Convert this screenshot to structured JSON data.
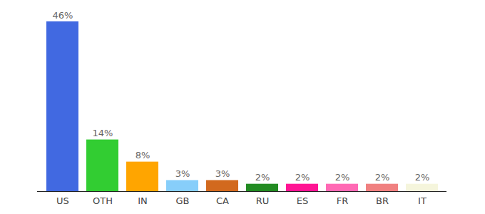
{
  "chart_data": {
    "type": "bar",
    "categories": [
      "US",
      "OTH",
      "IN",
      "GB",
      "CA",
      "RU",
      "ES",
      "FR",
      "BR",
      "IT"
    ],
    "values": [
      46,
      14,
      8,
      3,
      3,
      2,
      2,
      2,
      2,
      2
    ],
    "value_labels": [
      "46%",
      "14%",
      "8%",
      "3%",
      "3%",
      "2%",
      "2%",
      "2%",
      "2%",
      "2%"
    ],
    "colors": [
      "#4169e1",
      "#32cd32",
      "#ffa500",
      "#87cefa",
      "#d2691e",
      "#228b22",
      "#ff1493",
      "#ff69b4",
      "#f08080",
      "#f5f5dc"
    ],
    "data_labels": true,
    "tick_labels": "x",
    "grid": false
  }
}
